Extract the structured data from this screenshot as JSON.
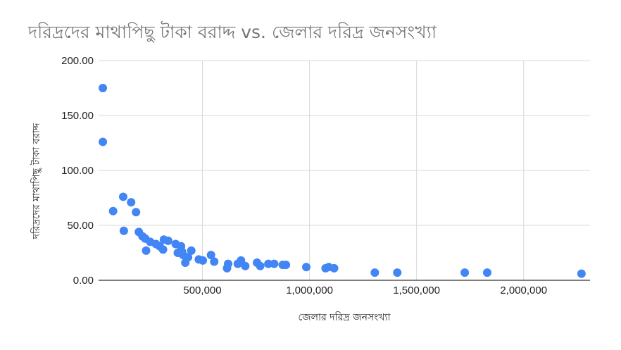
{
  "chart_data": {
    "type": "scatter",
    "title": "দরিদ্রদের মাথাপিছু টাকা বরাদ্দ vs. জেলার দরিদ্র জনসংখ্যা",
    "xlabel": "জেলার দরিদ্র জনসংখ্যা",
    "ylabel": "দরিদ্রদের মাথাপিছু টাকা বরাদ্দ",
    "xlim": [
      15000,
      2310000
    ],
    "ylim": [
      0,
      200
    ],
    "x_ticks": [
      500000,
      1000000,
      1500000,
      2000000
    ],
    "x_tick_labels": [
      "500,000",
      "1,000,000",
      "1,500,000",
      "2,000,000"
    ],
    "y_ticks": [
      0,
      50,
      100,
      150,
      200
    ],
    "y_tick_labels": [
      "0.00",
      "50.00",
      "100.00",
      "150.00",
      "200.00"
    ],
    "grid": true,
    "point_color": "#4285f4",
    "points": [
      [
        35000,
        175
      ],
      [
        35000,
        126
      ],
      [
        83000,
        63
      ],
      [
        130000,
        76
      ],
      [
        133000,
        45
      ],
      [
        167000,
        71
      ],
      [
        190000,
        62
      ],
      [
        203000,
        44
      ],
      [
        220000,
        40
      ],
      [
        233000,
        38
      ],
      [
        237000,
        27
      ],
      [
        256000,
        35
      ],
      [
        283000,
        33
      ],
      [
        300000,
        31
      ],
      [
        316000,
        28
      ],
      [
        320000,
        37
      ],
      [
        340000,
        36
      ],
      [
        375000,
        33
      ],
      [
        385000,
        25
      ],
      [
        400000,
        31
      ],
      [
        405000,
        26
      ],
      [
        410000,
        23
      ],
      [
        420000,
        16
      ],
      [
        433000,
        21
      ],
      [
        448000,
        27
      ],
      [
        483000,
        19
      ],
      [
        502000,
        18
      ],
      [
        540000,
        23
      ],
      [
        555000,
        17
      ],
      [
        615000,
        11
      ],
      [
        620000,
        15
      ],
      [
        665000,
        15
      ],
      [
        680000,
        18
      ],
      [
        700000,
        13
      ],
      [
        755000,
        16
      ],
      [
        770000,
        13
      ],
      [
        808000,
        15
      ],
      [
        835000,
        15
      ],
      [
        875000,
        14
      ],
      [
        890000,
        14
      ],
      [
        985000,
        12
      ],
      [
        1075000,
        11
      ],
      [
        1090000,
        12
      ],
      [
        1115000,
        11
      ],
      [
        1305000,
        7
      ],
      [
        1410000,
        7
      ],
      [
        1725000,
        7
      ],
      [
        1830000,
        7
      ],
      [
        2270000,
        6
      ]
    ]
  }
}
